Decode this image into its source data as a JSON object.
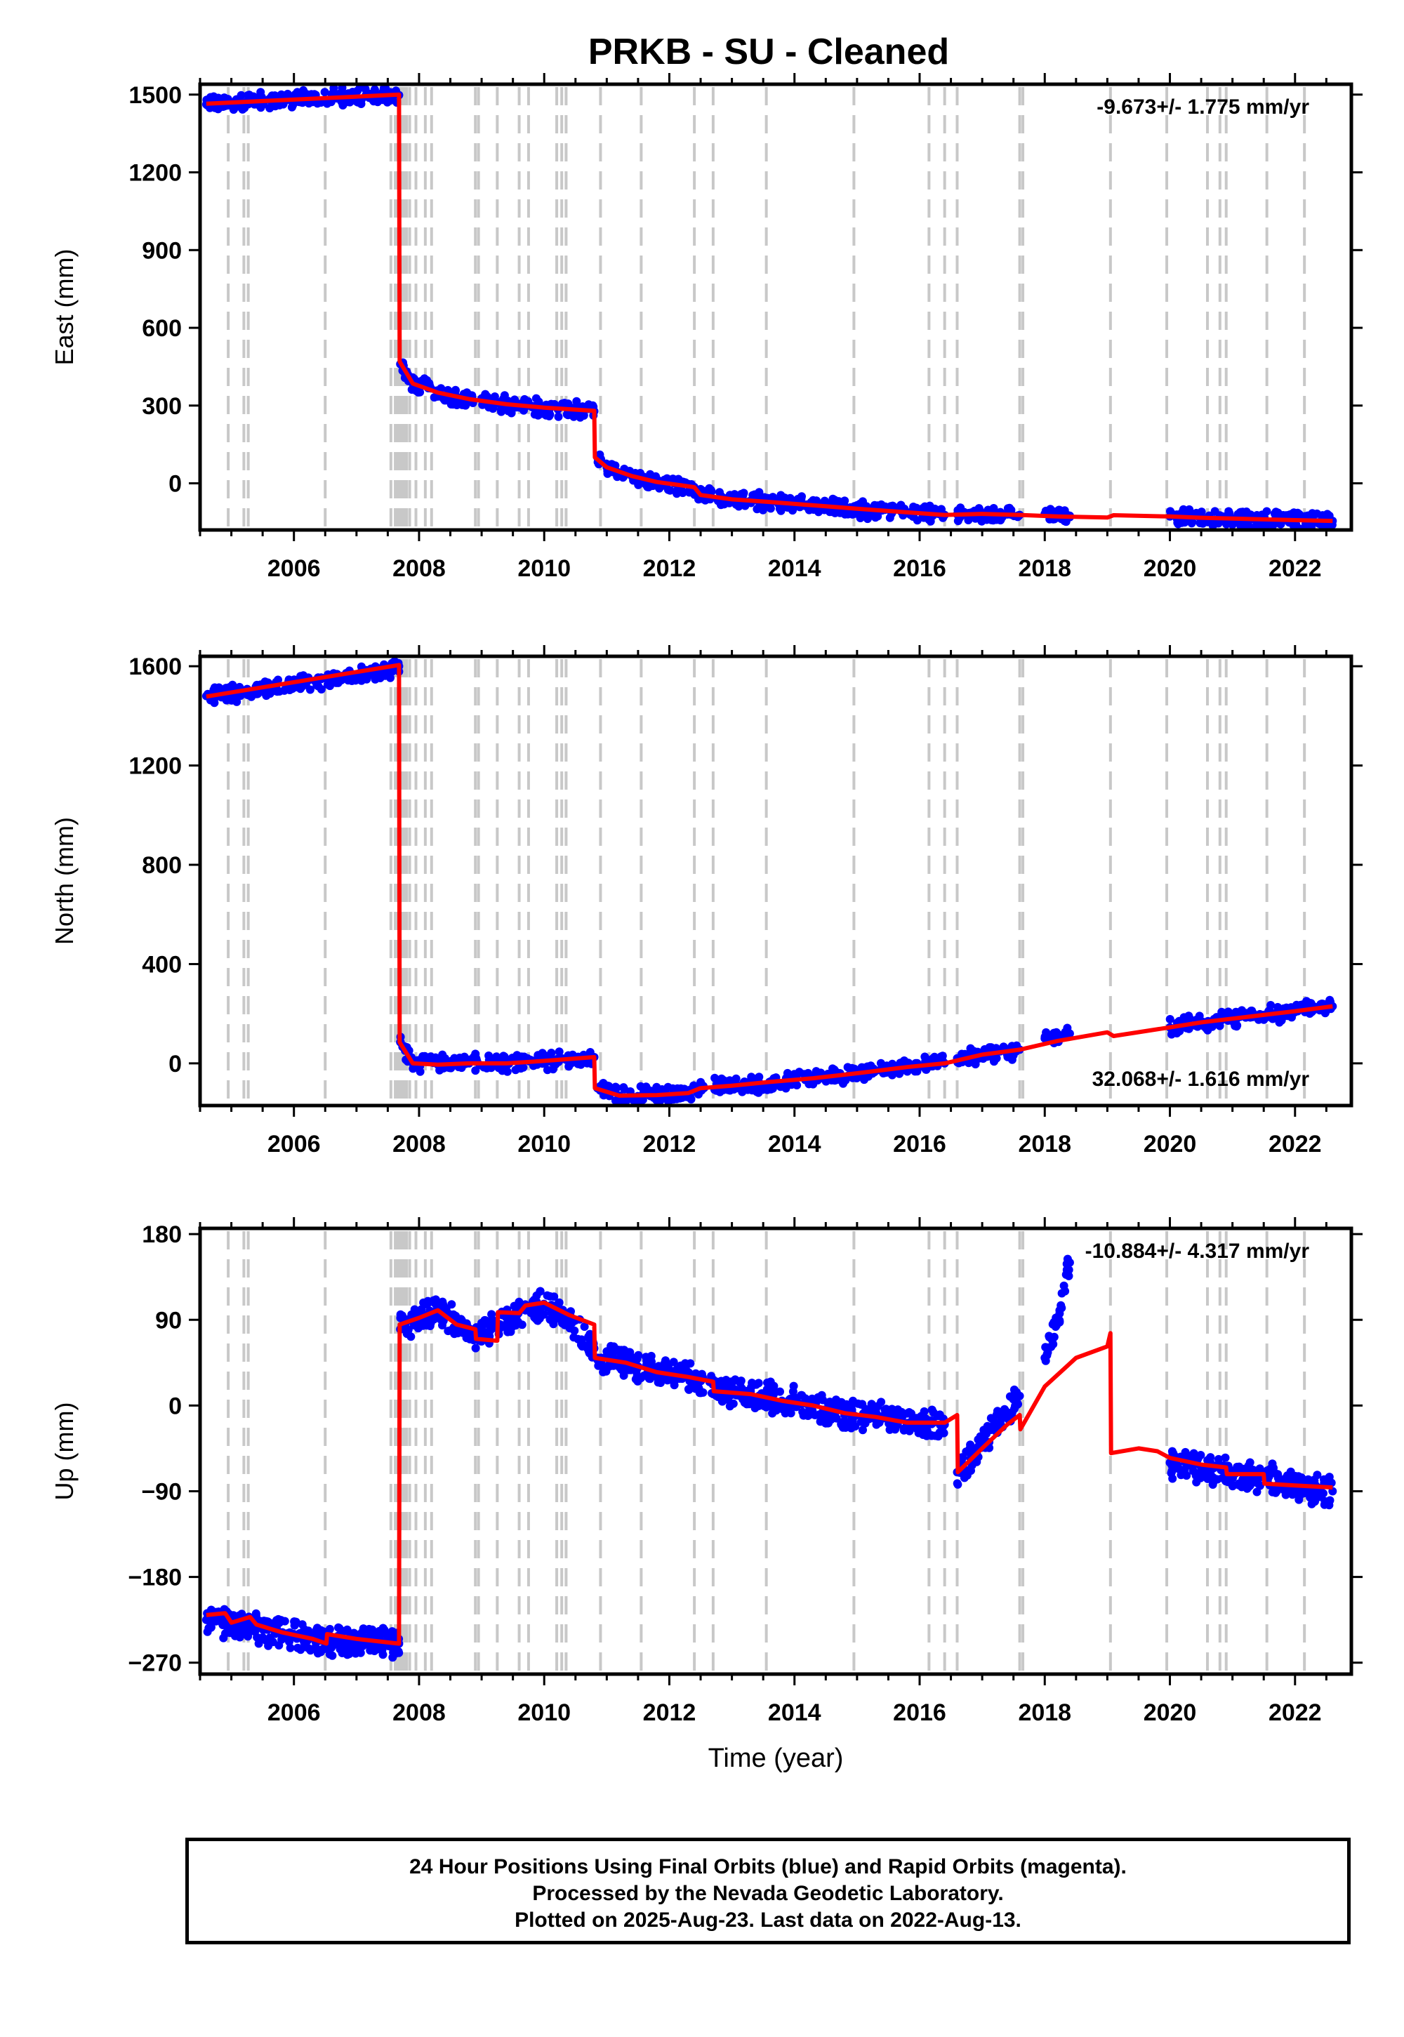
{
  "title": "PRKB  - SU - Cleaned",
  "footer": {
    "line1": "24 Hour Positions Using Final Orbits (blue) and Rapid Orbits (magenta).",
    "line2": "Processed by the Nevada Geodetic Laboratory.",
    "line3": "Plotted on 2025-Aug-23. Last data on 2022-Aug-13."
  },
  "colors": {
    "data": "#0000ff",
    "model": "#ff0000",
    "step": "#c8c8c8"
  },
  "chart_data": [
    {
      "type": "scatter",
      "ylabel": "East (mm)",
      "xlabel": "",
      "rate_label": "-9.673+/- 1.775 mm/yr",
      "xlim": [
        2004.5,
        2022.9
      ],
      "ylim": [
        -180,
        1540
      ],
      "yticks": [
        1500,
        1200,
        900,
        600,
        300,
        0
      ],
      "ytick_labels": [
        "1500",
        "1200",
        "900",
        "600",
        "300",
        "0"
      ],
      "xticks": [
        2006,
        2008,
        2010,
        2012,
        2014,
        2016,
        2018,
        2020,
        2022
      ],
      "xtick_labels": [
        "2006",
        "2008",
        "2010",
        "2012",
        "2014",
        "2016",
        "2018",
        "2020",
        "2022"
      ],
      "series": [
        {
          "role": "daily_positions",
          "segments": [
            {
              "x": [
                2004.6,
                2005.3,
                2006.0,
                2006.8,
                2007.4,
                2007.68
              ],
              "y": [
                1462,
                1475,
                1484,
                1491,
                1496,
                1498
              ]
            },
            {
              "x": [
                2007.7,
                2007.9,
                2008.3,
                2008.8,
                2009.4,
                2010.0,
                2010.4,
                2010.8
              ],
              "y": [
                460,
                385,
                350,
                325,
                305,
                292,
                285,
                278
              ]
            },
            {
              "x": [
                2010.85,
                2011.0,
                2011.4,
                2011.8,
                2012.2,
                2012.5,
                2013.0,
                2013.6,
                2014.3,
                2015.0,
                2015.8,
                2016.4
              ],
              "y": [
                100,
                62,
                28,
                5,
                -8,
                -45,
                -62,
                -72,
                -85,
                -98,
                -112,
                -122
              ]
            },
            {
              "x": [
                2016.6,
                2017.0,
                2017.6
              ],
              "y": [
                -120,
                -118,
                -122
              ]
            },
            {
              "x": [
                2018.0,
                2018.4
              ],
              "y": [
                -118,
                -125
              ]
            },
            {
              "x": [
                2020.0,
                2020.5,
                2021.0,
                2021.5,
                2022.0,
                2022.6
              ],
              "y": [
                -128,
                -133,
                -136,
                -139,
                -142,
                -145
              ]
            }
          ]
        },
        {
          "role": "model",
          "x": [
            2004.6,
            2007.68,
            2007.69,
            2007.9,
            2008.3,
            2008.8,
            2009.4,
            2010.0,
            2010.8,
            2010.81,
            2011.0,
            2011.4,
            2011.8,
            2012.2,
            2012.4,
            2012.5,
            2013.0,
            2013.6,
            2014.3,
            2015.0,
            2015.8,
            2016.4,
            2017.0,
            2017.6,
            2018.2,
            2019.0,
            2019.1,
            2020.0,
            2020.5,
            2021.0,
            2021.5,
            2022.0,
            2022.6
          ],
          "y": [
            1465,
            1500,
            470,
            385,
            350,
            325,
            305,
            292,
            280,
            100,
            62,
            28,
            5,
            -8,
            -15,
            -45,
            -62,
            -72,
            -85,
            -98,
            -112,
            -122,
            -118,
            -122,
            -128,
            -132,
            -123,
            -128,
            -133,
            -136,
            -139,
            -142,
            -145
          ]
        }
      ]
    },
    {
      "type": "scatter",
      "ylabel": "North (mm)",
      "xlabel": "",
      "rate_label": "32.068+/- 1.616 mm/yr",
      "xlim": [
        2004.5,
        2022.9
      ],
      "ylim": [
        -170,
        1640
      ],
      "yticks": [
        1600,
        1200,
        800,
        400,
        0
      ],
      "ytick_labels": [
        "1600",
        "1200",
        "800",
        "400",
        "0"
      ],
      "xticks": [
        2006,
        2008,
        2010,
        2012,
        2014,
        2016,
        2018,
        2020,
        2022
      ],
      "xtick_labels": [
        "2006",
        "2008",
        "2010",
        "2012",
        "2014",
        "2016",
        "2018",
        "2020",
        "2022"
      ],
      "series": [
        {
          "role": "daily_positions",
          "segments": [
            {
              "x": [
                2004.6,
                2005.3,
                2006.0,
                2006.8,
                2007.4,
                2007.68
              ],
              "y": [
                1480,
                1500,
                1528,
                1555,
                1578,
                1600
              ]
            },
            {
              "x": [
                2007.7,
                2007.9,
                2008.3,
                2008.8,
                2009.4,
                2010.0,
                2010.4,
                2010.8
              ],
              "y": [
                85,
                0,
                -5,
                0,
                0,
                10,
                20,
                25
              ]
            },
            {
              "x": [
                2010.85,
                2011.2,
                2011.8,
                2012.3,
                2012.5,
                2013.0,
                2013.6,
                2014.3,
                2015.0,
                2015.8,
                2016.4
              ],
              "y": [
                -100,
                -130,
                -128,
                -120,
                -100,
                -90,
                -75,
                -60,
                -40,
                -15,
                0
              ]
            },
            {
              "x": [
                2016.6,
                2017.0,
                2017.6
              ],
              "y": [
                20,
                35,
                55
              ]
            },
            {
              "x": [
                2018.0,
                2018.4
              ],
              "y": [
                100,
                120
              ]
            },
            {
              "x": [
                2020.0,
                2020.5,
                2021.0,
                2021.5,
                2022.0,
                2022.6
              ],
              "y": [
                145,
                165,
                180,
                195,
                210,
                230
              ]
            }
          ]
        },
        {
          "role": "model",
          "x": [
            2004.6,
            2007.68,
            2007.69,
            2007.9,
            2008.3,
            2008.8,
            2009.4,
            2010.0,
            2010.8,
            2010.81,
            2011.2,
            2011.8,
            2012.3,
            2012.5,
            2013.0,
            2013.6,
            2014.3,
            2015.0,
            2015.8,
            2016.4,
            2017.0,
            2017.6,
            2018.2,
            2019.0,
            2019.1,
            2020.0,
            2020.5,
            2021.0,
            2021.5,
            2022.0,
            2022.6
          ],
          "y": [
            1478,
            1605,
            85,
            0,
            -5,
            0,
            0,
            10,
            25,
            -100,
            -130,
            -128,
            -120,
            -100,
            -90,
            -75,
            -60,
            -40,
            -15,
            0,
            35,
            55,
            90,
            125,
            110,
            145,
            165,
            180,
            195,
            210,
            230
          ]
        }
      ]
    },
    {
      "type": "scatter",
      "ylabel": "Up (mm)",
      "xlabel": "Time (year)",
      "rate_label": "-10.884+/- 4.317 mm/yr",
      "xlim": [
        2004.5,
        2022.9
      ],
      "ylim": [
        -282,
        186
      ],
      "yticks": [
        180,
        90,
        0,
        -90,
        -180,
        -270
      ],
      "ytick_labels": [
        "180",
        "90",
        "0",
        "−90",
        "−180",
        "−270"
      ],
      "xticks": [
        2006,
        2008,
        2010,
        2012,
        2014,
        2016,
        2018,
        2020,
        2022
      ],
      "xtick_labels": [
        "2006",
        "2008",
        "2010",
        "2012",
        "2014",
        "2016",
        "2018",
        "2020",
        "2022"
      ],
      "series": [
        {
          "role": "daily_positions",
          "segments": [
            {
              "x": [
                2004.6,
                2005.0,
                2005.5,
                2006.0,
                2006.5,
                2007.0,
                2007.68
              ],
              "y": [
                -225,
                -230,
                -235,
                -240,
                -250,
                -245,
                -250
              ]
            },
            {
              "x": [
                2007.7,
                2008.0,
                2008.3,
                2008.6,
                2008.9,
                2009.3,
                2009.7,
                2010.0,
                2010.4,
                2010.8
              ],
              "y": [
                80,
                92,
                100,
                85,
                75,
                85,
                100,
                105,
                90,
                60
              ]
            },
            {
              "x": [
                2010.85,
                2011.3,
                2011.8,
                2012.3,
                2012.8,
                2013.3,
                2013.8,
                2014.3,
                2014.8,
                2015.3,
                2015.8,
                2016.4
              ],
              "y": [
                50,
                45,
                35,
                30,
                15,
                15,
                5,
                0,
                -10,
                -10,
                -20,
                -20
              ]
            },
            {
              "x": [
                2016.6,
                2016.9,
                2017.2,
                2017.6
              ],
              "y": [
                -70,
                -50,
                -20,
                10
              ]
            },
            {
              "x": [
                2018.0,
                2018.2,
                2018.4
              ],
              "y": [
                50,
                90,
                150
              ]
            },
            {
              "x": [
                2020.0,
                2020.5,
                2021.0,
                2021.5,
                2022.0,
                2022.6
              ],
              "y": [
                -60,
                -65,
                -70,
                -75,
                -85,
                -90
              ]
            }
          ]
        },
        {
          "role": "model",
          "x": [
            2004.6,
            2004.9,
            2005.0,
            2005.3,
            2005.4,
            2005.8,
            2006.3,
            2006.52,
            2006.53,
            2007.0,
            2007.68,
            2007.69,
            2008.0,
            2008.3,
            2008.6,
            2008.9,
            2008.91,
            2009.25,
            2009.26,
            2009.6,
            2009.7,
            2010.0,
            2010.4,
            2010.8,
            2010.81,
            2011.3,
            2011.8,
            2012.3,
            2012.7,
            2012.71,
            2013.3,
            2013.8,
            2014.3,
            2014.8,
            2015.3,
            2015.8,
            2016.4,
            2016.6,
            2016.61,
            2017.0,
            2017.4,
            2017.6,
            2017.61,
            2018.0,
            2018.5,
            2019.0,
            2019.05,
            2019.06,
            2019.5,
            2019.8,
            2020.0,
            2020.5,
            2020.9,
            2020.91,
            2021.5,
            2021.51,
            2022.0,
            2022.6
          ],
          "y": [
            -220,
            -218,
            -228,
            -222,
            -230,
            -238,
            -245,
            -250,
            -240,
            -245,
            -250,
            85,
            92,
            100,
            85,
            80,
            70,
            68,
            98,
            97,
            105,
            108,
            95,
            85,
            50,
            45,
            35,
            30,
            25,
            15,
            12,
            5,
            0,
            -8,
            -12,
            -18,
            -18,
            -10,
            -70,
            -45,
            -20,
            -10,
            -25,
            20,
            50,
            62,
            76,
            -50,
            -45,
            -48,
            -55,
            -62,
            -65,
            -72,
            -72,
            -82,
            -84,
            -86
          ]
        }
      ]
    }
  ]
}
